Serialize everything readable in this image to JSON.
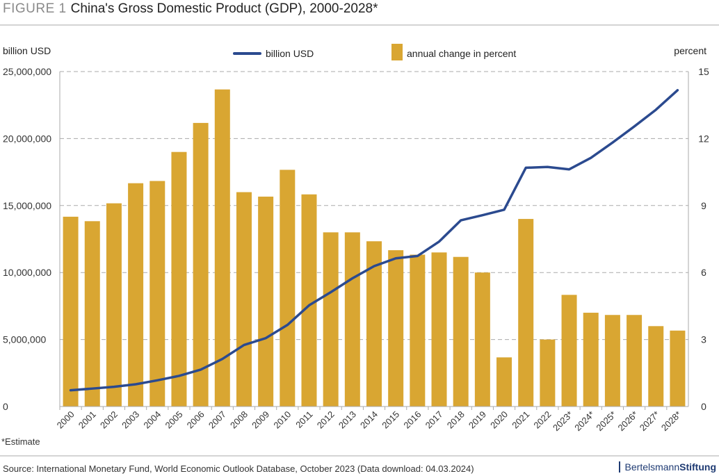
{
  "header": {
    "figure_label": "FIGURE 1",
    "title": "China's Gross Domestic Product (GDP), 2000-2028*"
  },
  "footer": {
    "note": "*Estimate",
    "source": "Source: International Monetary Fund, World Economic Outlook Database, October 2023 (Data download: 04.03.2024)",
    "logo_light": "Bertelsmann",
    "logo_bold": "Stiftung"
  },
  "chart_data": {
    "type": "bar+line",
    "title": "China's Gross Domestic Product (GDP), 2000-2028*",
    "ylabel_left": "billion USD",
    "ylabel_right": "percent",
    "ylim_left": [
      0,
      25000000
    ],
    "ylim_right": [
      0,
      15
    ],
    "yticks_left": [
      "0",
      "5,000,000",
      "10,000,000",
      "15,000,000",
      "20,000,000",
      "25,000,000"
    ],
    "yticks_right": [
      "0",
      "3",
      "6",
      "9",
      "12",
      "15"
    ],
    "grid": true,
    "legend_position": "top-center",
    "categories": [
      "2000",
      "2001",
      "2002",
      "2003",
      "2004",
      "2005",
      "2006",
      "2007",
      "2008",
      "2009",
      "2010",
      "2011",
      "2012",
      "2013",
      "2014",
      "2015",
      "2016",
      "2017",
      "2018",
      "2019",
      "2020",
      "2021",
      "2022",
      "2023*",
      "2024*",
      "2025*",
      "2026*",
      "2027*",
      "2028*"
    ],
    "series": [
      {
        "name": "annual change in percent",
        "type": "bar",
        "axis": "right",
        "color": "#d9a632",
        "values": [
          8.5,
          8.3,
          9.1,
          10.0,
          10.1,
          11.4,
          12.7,
          14.2,
          9.6,
          9.4,
          10.6,
          9.5,
          7.8,
          7.8,
          7.4,
          7.0,
          6.8,
          6.9,
          6.7,
          6.0,
          2.2,
          8.4,
          3.0,
          5.0,
          4.2,
          4.1,
          4.1,
          3.6,
          3.4
        ]
      },
      {
        "name": "billion USD",
        "type": "line",
        "axis": "left",
        "color": "#2b4a8f",
        "values": [
          1211000,
          1339000,
          1471000,
          1660000,
          1955000,
          2286000,
          2752000,
          3550000,
          4594000,
          5102000,
          6087000,
          7552000,
          8532000,
          9570000,
          10476000,
          11062000,
          11233000,
          12310000,
          13895000,
          14280000,
          14688000,
          17820000,
          17882000,
          17701000,
          18560000,
          19700000,
          20900000,
          22150000,
          23610000
        ]
      }
    ]
  }
}
